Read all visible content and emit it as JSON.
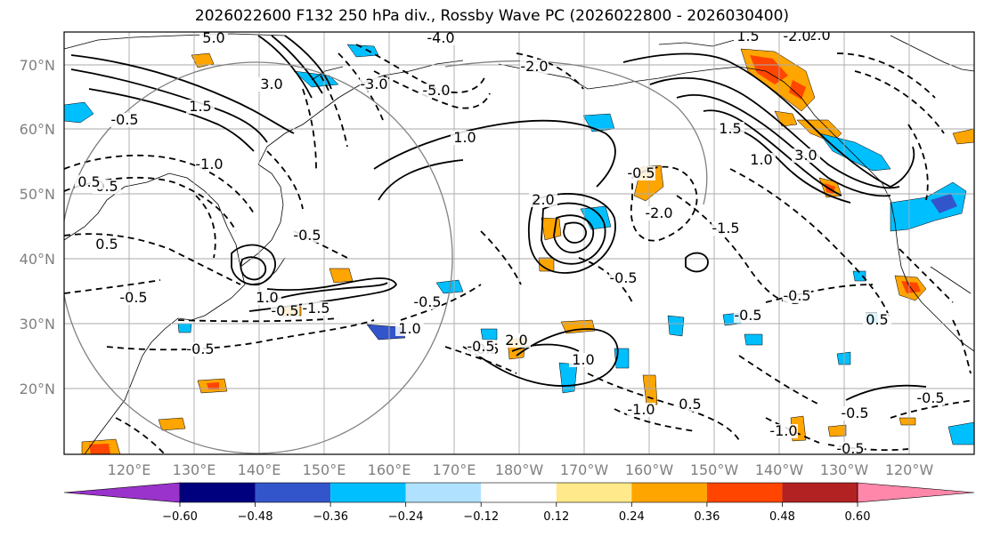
{
  "title": "2026022600 F132 250 hPa div., Rossby Wave PC (2026022800 - 2026030400)",
  "lat_labels": [
    "70°N",
    "60°N",
    "50°N",
    "40°N",
    "30°N",
    "20°N"
  ],
  "lon_labels": [
    "120°E",
    "130°E",
    "140°E",
    "150°E",
    "160°E",
    "170°E",
    "180°W",
    "170°W",
    "160°W",
    "150°W",
    "140°W",
    "130°W",
    "120°W"
  ],
  "colorbar": {
    "ticks": [
      "−0.60",
      "−0.48",
      "−0.36",
      "−0.24",
      "−0.12",
      "0.12",
      "0.24",
      "0.36",
      "0.48",
      "0.60"
    ],
    "colors": [
      "#9a33cc",
      "#00007f",
      "#3355cc",
      "#00bfff",
      "#b0e2ff",
      "#ffffff",
      "#ffe98a",
      "#ffa500",
      "#ff4500",
      "#b22222",
      "#ff88aa"
    ]
  },
  "contour_labels": [
    {
      "text": "-0.5"
    },
    {
      "text": "5.0"
    },
    {
      "text": "-4.0"
    },
    {
      "text": "3.0"
    },
    {
      "text": "-5.0"
    },
    {
      "text": "-3.0"
    },
    {
      "text": "1.5"
    },
    {
      "text": "-2.0"
    },
    {
      "text": "1.0"
    },
    {
      "text": "-1.0"
    },
    {
      "text": "0.5"
    },
    {
      "text": "-0.5"
    },
    {
      "text": "1.0"
    },
    {
      "text": "-0.5"
    },
    {
      "text": "-1.5"
    },
    {
      "text": "2.0"
    },
    {
      "text": "-0.5"
    },
    {
      "text": "1.5"
    },
    {
      "text": "-2.0"
    },
    {
      "text": "1.0"
    },
    {
      "text": "-1.5"
    },
    {
      "text": "2.0"
    },
    {
      "text": "3.0"
    },
    {
      "text": "-0.5"
    },
    {
      "text": "-0.5"
    },
    {
      "text": "1.0"
    },
    {
      "text": "-0.5"
    },
    {
      "text": "-0.5"
    },
    {
      "text": "-0.5"
    },
    {
      "text": "-0.5"
    },
    {
      "text": "0.5"
    },
    {
      "text": "-0.5"
    },
    {
      "text": "1.0"
    },
    {
      "text": "-1.0"
    },
    {
      "text": "0.5"
    },
    {
      "text": "-0.5"
    },
    {
      "text": "-1.0"
    },
    {
      "text": "-0.5"
    },
    {
      "text": "-0.5"
    },
    {
      "text": "0.5"
    },
    {
      "text": "0.5"
    },
    {
      "text": "-0.5"
    },
    {
      "text": "1.5"
    },
    {
      "text": "-2.0"
    },
    {
      "text": "2.0"
    }
  ]
}
